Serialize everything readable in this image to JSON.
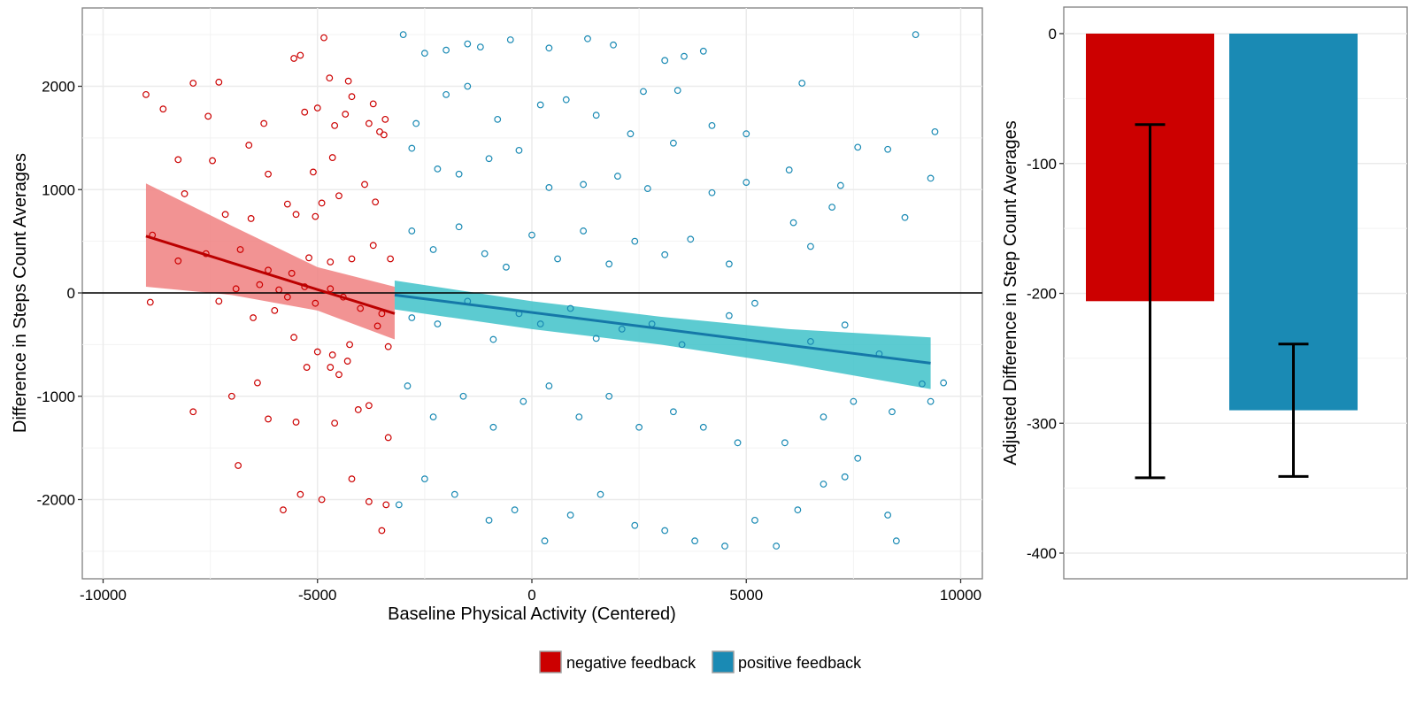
{
  "chart_data": [
    {
      "type": "scatter",
      "panel": "left",
      "xlabel": "Baseline Physical Activity (Centered)",
      "ylabel": "Difference in Steps Count Averages",
      "xlim": [
        -11000,
        11000
      ],
      "ylim": [
        -2750,
        2750
      ],
      "xticks": [
        -10000,
        -5000,
        0,
        5000,
        10000
      ],
      "xtick_labels": [
        "-10000",
        "-5000",
        "0",
        "5000",
        "10000"
      ],
      "yticks": [
        -2000,
        -1000,
        0,
        1000,
        2000
      ],
      "ytick_labels": [
        "-2000",
        "-1000",
        "0",
        "1000",
        "2000"
      ],
      "grid": true,
      "reference_line_y": 0,
      "series": [
        {
          "name": "negative feedback",
          "color": "#cc0000",
          "ribbon_color": "#f08080",
          "fit": {
            "x": [
              -9000,
              -3200
            ],
            "y": [
              550,
              -200
            ]
          },
          "ribbon": {
            "x": [
              -9000,
              -7000,
              -5000,
              -3200
            ],
            "lower": [
              60,
              -20,
              -170,
              -450
            ],
            "upper": [
              1060,
              650,
              250,
              60
            ]
          },
          "points": [
            [
              -9000,
              1920
            ],
            [
              -7900,
              2030
            ],
            [
              -7300,
              2040
            ],
            [
              -5400,
              2300
            ],
            [
              -5550,
              2270
            ],
            [
              -4850,
              2470
            ],
            [
              -4720,
              2080
            ],
            [
              -4280,
              2050
            ],
            [
              -4350,
              1730
            ],
            [
              -3800,
              1640
            ],
            [
              -3420,
              1680
            ],
            [
              -8600,
              1780
            ],
            [
              -7550,
              1710
            ],
            [
              -6250,
              1640
            ],
            [
              -5300,
              1750
            ],
            [
              -5000,
              1790
            ],
            [
              -4600,
              1620
            ],
            [
              -4200,
              1900
            ],
            [
              -3700,
              1830
            ],
            [
              -8250,
              1290
            ],
            [
              -7450,
              1280
            ],
            [
              -6600,
              1430
            ],
            [
              -6150,
              1150
            ],
            [
              -5100,
              1170
            ],
            [
              -4650,
              1310
            ],
            [
              -3550,
              1560
            ],
            [
              -3450,
              1530
            ],
            [
              -8100,
              960
            ],
            [
              -7150,
              760
            ],
            [
              -6550,
              720
            ],
            [
              -5700,
              860
            ],
            [
              -5500,
              760
            ],
            [
              -5050,
              740
            ],
            [
              -4900,
              870
            ],
            [
              -4500,
              940
            ],
            [
              -3900,
              1050
            ],
            [
              -3650,
              880
            ],
            [
              -8850,
              560
            ],
            [
              -8250,
              310
            ],
            [
              -7600,
              380
            ],
            [
              -6800,
              420
            ],
            [
              -6150,
              220
            ],
            [
              -5600,
              190
            ],
            [
              -5200,
              340
            ],
            [
              -4700,
              300
            ],
            [
              -4200,
              330
            ],
            [
              -3700,
              460
            ],
            [
              -3300,
              330
            ],
            [
              -8900,
              -90
            ],
            [
              -7300,
              -80
            ],
            [
              -6900,
              40
            ],
            [
              -6350,
              80
            ],
            [
              -5900,
              30
            ],
            [
              -5700,
              -40
            ],
            [
              -5300,
              60
            ],
            [
              -5050,
              -100
            ],
            [
              -4700,
              40
            ],
            [
              -4400,
              -40
            ],
            [
              -4000,
              -150
            ],
            [
              -3500,
              -200
            ],
            [
              -7900,
              -1150
            ],
            [
              -7000,
              -1000
            ],
            [
              -6400,
              -870
            ],
            [
              -6150,
              -1220
            ],
            [
              -5500,
              -1250
            ],
            [
              -5250,
              -720
            ],
            [
              -4700,
              -720
            ],
            [
              -4500,
              -790
            ],
            [
              -4300,
              -660
            ],
            [
              -3800,
              -1090
            ],
            [
              -3350,
              -1400
            ],
            [
              -6500,
              -240
            ],
            [
              -6000,
              -170
            ],
            [
              -5550,
              -430
            ],
            [
              -5000,
              -570
            ],
            [
              -4650,
              -600
            ],
            [
              -4250,
              -500
            ],
            [
              -3600,
              -320
            ],
            [
              -3350,
              -520
            ],
            [
              -6850,
              -1670
            ],
            [
              -5400,
              -1950
            ],
            [
              -4900,
              -2000
            ],
            [
              -4200,
              -1800
            ],
            [
              -3800,
              -2020
            ],
            [
              -3500,
              -2300
            ],
            [
              -3400,
              -2050
            ],
            [
              -5800,
              -2100
            ],
            [
              -4600,
              -1260
            ],
            [
              -4050,
              -1130
            ]
          ]
        },
        {
          "name": "positive feedback",
          "color": "#1a8ab4",
          "ribbon_color": "#3fc2c9",
          "fit": {
            "x": [
              -3200,
              9300
            ],
            "y": [
              -20,
              -680
            ]
          },
          "ribbon": {
            "x": [
              -3200,
              0,
              3000,
              6000,
              9300
            ],
            "lower": [
              -160,
              -350,
              -500,
              -690,
              -930
            ],
            "upper": [
              120,
              -80,
              -230,
              -350,
              -430
            ]
          },
          "points": [
            [
              -3000,
              2500
            ],
            [
              -2500,
              2320
            ],
            [
              -2000,
              2350
            ],
            [
              -1500,
              2410
            ],
            [
              -1200,
              2380
            ],
            [
              -500,
              2450
            ],
            [
              400,
              2370
            ],
            [
              1300,
              2460
            ],
            [
              1900,
              2400
            ],
            [
              3100,
              2250
            ],
            [
              3550,
              2290
            ],
            [
              4000,
              2340
            ],
            [
              8950,
              2500
            ],
            [
              -2700,
              1640
            ],
            [
              -2000,
              1920
            ],
            [
              -1500,
              2000
            ],
            [
              -800,
              1680
            ],
            [
              200,
              1820
            ],
            [
              800,
              1870
            ],
            [
              1500,
              1720
            ],
            [
              2300,
              1540
            ],
            [
              2600,
              1950
            ],
            [
              3400,
              1960
            ],
            [
              4200,
              1620
            ],
            [
              5000,
              1540
            ],
            [
              6300,
              2030
            ],
            [
              -2800,
              1400
            ],
            [
              -2200,
              1200
            ],
            [
              -1700,
              1150
            ],
            [
              -1000,
              1300
            ],
            [
              -300,
              1380
            ],
            [
              400,
              1020
            ],
            [
              1200,
              1050
            ],
            [
              2000,
              1130
            ],
            [
              2700,
              1010
            ],
            [
              3300,
              1450
            ],
            [
              4200,
              970
            ],
            [
              5000,
              1070
            ],
            [
              6000,
              1190
            ],
            [
              7200,
              1040
            ],
            [
              7600,
              1410
            ],
            [
              8300,
              1390
            ],
            [
              -2800,
              600
            ],
            [
              -2300,
              420
            ],
            [
              -1700,
              640
            ],
            [
              -1100,
              380
            ],
            [
              -600,
              250
            ],
            [
              0,
              560
            ],
            [
              600,
              330
            ],
            [
              1200,
              600
            ],
            [
              1800,
              280
            ],
            [
              2400,
              500
            ],
            [
              3100,
              370
            ],
            [
              3700,
              520
            ],
            [
              4600,
              280
            ],
            [
              6100,
              680
            ],
            [
              6500,
              450
            ],
            [
              7000,
              830
            ],
            [
              8700,
              730
            ],
            [
              9300,
              1110
            ],
            [
              9400,
              1560
            ],
            [
              -2800,
              -240
            ],
            [
              -2200,
              -300
            ],
            [
              -1500,
              -80
            ],
            [
              -900,
              -450
            ],
            [
              -300,
              -200
            ],
            [
              200,
              -300
            ],
            [
              900,
              -150
            ],
            [
              1500,
              -440
            ],
            [
              2100,
              -350
            ],
            [
              2800,
              -300
            ],
            [
              3500,
              -500
            ],
            [
              4600,
              -220
            ],
            [
              5200,
              -100
            ],
            [
              6500,
              -470
            ],
            [
              7300,
              -310
            ],
            [
              8100,
              -590
            ],
            [
              9100,
              -880
            ],
            [
              9600,
              -870
            ],
            [
              -2900,
              -900
            ],
            [
              -2300,
              -1200
            ],
            [
              -1600,
              -1000
            ],
            [
              -900,
              -1300
            ],
            [
              -200,
              -1050
            ],
            [
              400,
              -900
            ],
            [
              1100,
              -1200
            ],
            [
              1800,
              -1000
            ],
            [
              2500,
              -1300
            ],
            [
              3300,
              -1150
            ],
            [
              4000,
              -1300
            ],
            [
              4800,
              -1450
            ],
            [
              5900,
              -1450
            ],
            [
              6800,
              -1200
            ],
            [
              7500,
              -1050
            ],
            [
              8400,
              -1150
            ],
            [
              9300,
              -1050
            ],
            [
              -3100,
              -2050
            ],
            [
              -2500,
              -1800
            ],
            [
              -1800,
              -1950
            ],
            [
              -1000,
              -2200
            ],
            [
              -400,
              -2100
            ],
            [
              300,
              -2400
            ],
            [
              900,
              -2150
            ],
            [
              1600,
              -1950
            ],
            [
              2400,
              -2250
            ],
            [
              3100,
              -2300
            ],
            [
              3800,
              -2400
            ],
            [
              4500,
              -2450
            ],
            [
              5200,
              -2200
            ],
            [
              5700,
              -2450
            ],
            [
              6200,
              -2100
            ],
            [
              7300,
              -1780
            ],
            [
              8300,
              -2150
            ],
            [
              8500,
              -2400
            ],
            [
              7600,
              -1600
            ],
            [
              6800,
              -1850
            ]
          ]
        }
      ]
    },
    {
      "type": "bar",
      "panel": "right",
      "ylabel": "Adjusted Difference in Step Count Averages",
      "xlabel": "",
      "categories": [
        "negative feedback",
        "positive feedback"
      ],
      "values": [
        -206,
        -290
      ],
      "error_low": [
        -342,
        -341
      ],
      "error_high": [
        -70,
        -239
      ],
      "colors": [
        "#cc0000",
        "#1a8ab4"
      ],
      "ylim": [
        -420,
        20
      ],
      "yticks": [
        0,
        -100,
        -200,
        -300,
        -400
      ],
      "ytick_labels": [
        "0",
        "-100",
        "-200",
        "-300",
        "-400"
      ],
      "grid": true
    }
  ],
  "legend": {
    "placement": "bottom-center",
    "items": [
      {
        "label": "negative feedback",
        "color": "#cc0000"
      },
      {
        "label": "positive feedback",
        "color": "#1a8ab4"
      }
    ]
  }
}
